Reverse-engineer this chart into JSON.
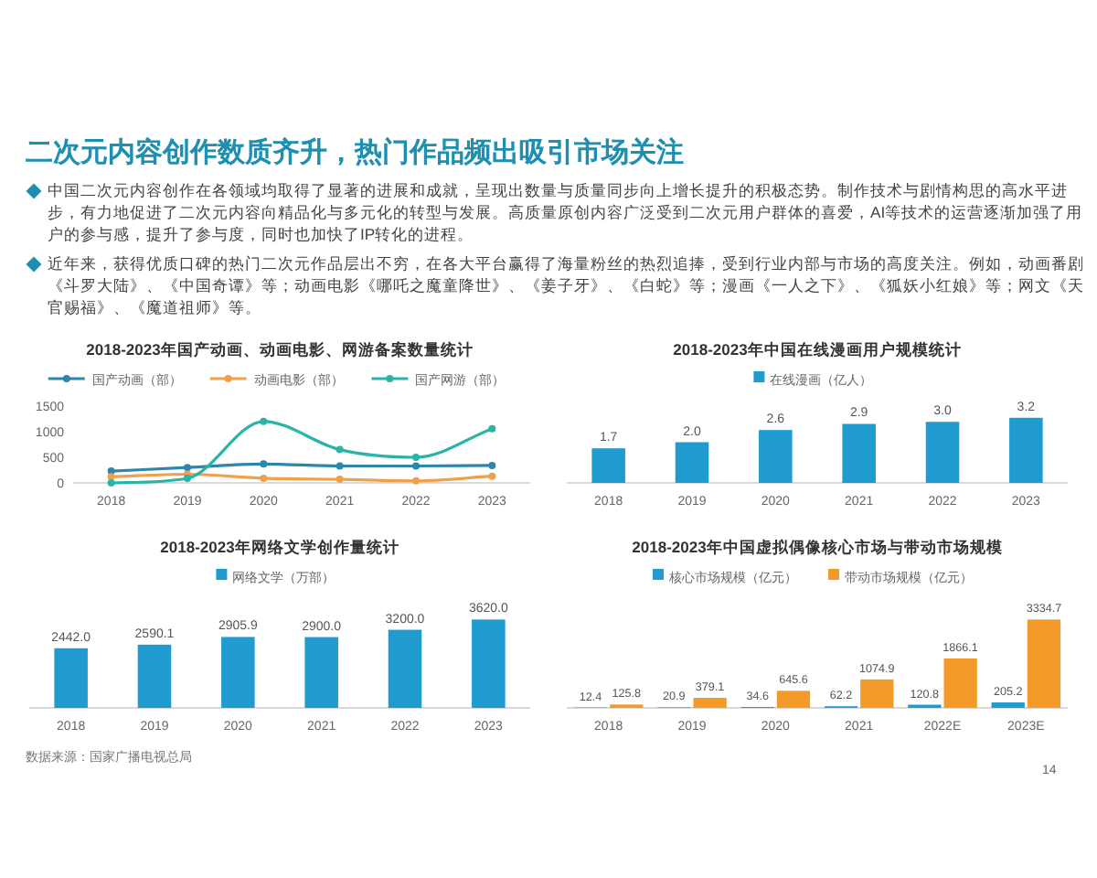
{
  "chart_data": [
    {
      "type": "other",
      "title": "二次元内容创作数质齐升，热门作品频出吸引市场关注",
      "annotations": [
        "中国二次元内容创作在各领域均取得了显著的进展和成就，呈现出数量与质量同步向上增长提升的积极态势。制作技术与剧情构思的高水平进步，有力地促进了二次元内容向精品化与多元化的转型与发展。高质量原创内容广泛受到二次元用户群体的喜爱，AI等技术的运营逐渐加强了用户的参与感，提升了参与度，同时也加快了IP转化的进程。",
        "近年来，获得优质口碑的热门二次元作品层出不穷，在各大平台赢得了海量粉丝的热烈追捧，受到行业内部与市场的高度关注。例如，动画番剧《斗罗大陆》、《中国奇谭》等；动画电影《哪吒之魔童降世》、《姜子牙》、《白蛇》等；漫画《一人之下》、《狐妖小红娘》等；网文《天官赐福》、《魔道祖师》等。",
        "14"
      ]
    },
    {
      "type": "line",
      "title": "2018-2023年国产动画、动画电影、网游备案数量统计",
      "categories": [
        "2018",
        "2019",
        "2020",
        "2021",
        "2022",
        "2023"
      ],
      "ylim": [
        0,
        1500
      ],
      "yticks": [
        0,
        500,
        1000,
        1500
      ],
      "legend": "top",
      "marker": "circle",
      "series": [
        {
          "name": "国产动画（部）",
          "color": "#2e86ab",
          "values": [
            230,
            300,
            370,
            330,
            330,
            340
          ]
        },
        {
          "name": "动画电影（部）",
          "color": "#f0a04b",
          "values": [
            120,
            170,
            90,
            70,
            40,
            130
          ]
        },
        {
          "name": "国产网游（部）",
          "color": "#2ab3a6",
          "values": [
            0,
            90,
            1200,
            650,
            500,
            1060
          ]
        }
      ]
    },
    {
      "type": "bar",
      "title": "2018-2023年中国在线漫画用户规模统计",
      "categories": [
        "2018",
        "2019",
        "2020",
        "2021",
        "2022",
        "2023"
      ],
      "legend": "top",
      "series": [
        {
          "name": "在线漫画（亿人）",
          "color": "#1f9bcf",
          "values": [
            1.7,
            2.0,
            2.6,
            2.9,
            3.0,
            3.2
          ],
          "value_labels": [
            "1.7",
            "2.0",
            "2.6",
            "2.9",
            "3.0",
            "3.2"
          ]
        }
      ]
    },
    {
      "type": "bar",
      "title": "2018-2023年网络文学创作量统计",
      "categories": [
        "2018",
        "2019",
        "2020",
        "2021",
        "2022",
        "2023"
      ],
      "legend": "top",
      "annotations": [
        "数据来源：国家广播电视总局"
      ],
      "series": [
        {
          "name": "网络文学（万部）",
          "color": "#1f9bcf",
          "values": [
            2442.0,
            2590.1,
            2905.9,
            2900.0,
            3200.0,
            3620.0
          ],
          "value_labels": [
            "2442.0",
            "2590.1",
            "2905.9",
            "2900.0",
            "3200.0",
            "3620.0"
          ]
        }
      ]
    },
    {
      "type": "bar",
      "title": "2018-2023年中国虚拟偶像核心市场与带动市场规模",
      "categories": [
        "2018",
        "2019",
        "2020",
        "2021",
        "2022E",
        "2023E"
      ],
      "legend": "top",
      "series": [
        {
          "name": "核心市场规模（亿元）",
          "color": "#1f9bcf",
          "values": [
            12.4,
            20.9,
            34.6,
            62.2,
            120.8,
            205.2
          ],
          "value_labels": [
            "12.4",
            "20.9",
            "34.6",
            "62.2",
            "120.8",
            "205.2"
          ]
        },
        {
          "name": "带动市场规模（亿元）",
          "color": "#f39a2b",
          "values": [
            125.8,
            379.1,
            645.6,
            1074.9,
            1866.1,
            3334.7
          ],
          "value_labels": [
            "125.8",
            "379.1",
            "645.6",
            "1074.9",
            "1866.1",
            "3334.7"
          ]
        }
      ]
    }
  ]
}
